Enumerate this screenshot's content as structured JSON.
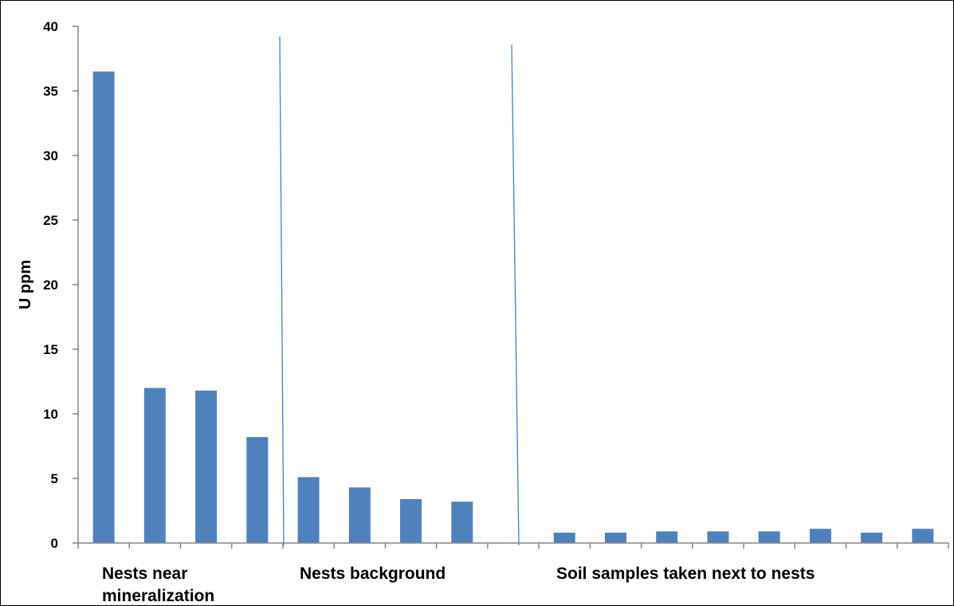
{
  "chart_data": {
    "type": "bar",
    "ylabel": "U ppm",
    "xlabel": "",
    "ylim": [
      0,
      40
    ],
    "yticks": [
      0,
      5,
      10,
      15,
      20,
      25,
      30,
      35,
      40
    ],
    "grid": false,
    "values": [
      36.5,
      12.0,
      11.8,
      8.2,
      5.1,
      4.3,
      3.4,
      3.2,
      null,
      0.8,
      0.8,
      0.9,
      0.9,
      0.9,
      1.1,
      0.8,
      1.1
    ],
    "groups": [
      {
        "label_lines": [
          "Nests  near",
          "mineralization"
        ]
      },
      {
        "label_lines": [
          "Nests background"
        ]
      },
      {
        "label_lines": [
          "Soil samples taken next to nests"
        ]
      }
    ],
    "bar_color": "#4f81bd",
    "divider_color": "#4a7ebb",
    "axis_color": "#868686"
  }
}
